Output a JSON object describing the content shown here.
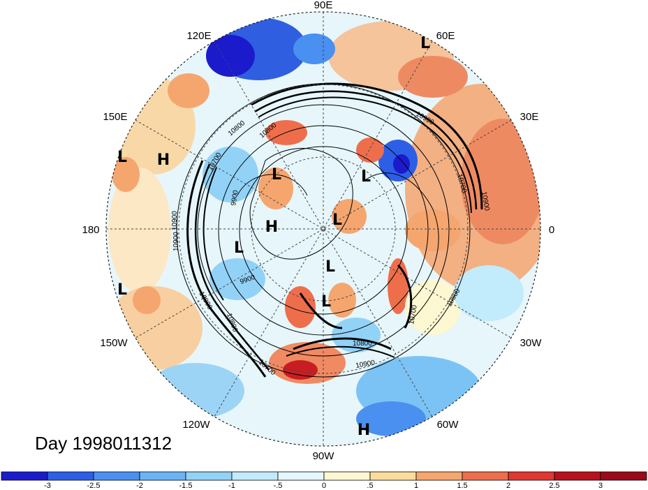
{
  "title": "Day 1998011312",
  "map": {
    "projection": "north-polar-stereographic",
    "longitude_labels": [
      "90E",
      "60E",
      "30E",
      "0",
      "30W",
      "60W",
      "90W",
      "120W",
      "150W",
      "180",
      "150E",
      "120E"
    ],
    "extrema": [
      {
        "type": "L"
      },
      {
        "type": "L"
      },
      {
        "type": "H"
      },
      {
        "type": "L"
      },
      {
        "type": "L"
      },
      {
        "type": "H"
      },
      {
        "type": "L"
      },
      {
        "type": "L"
      },
      {
        "type": "L"
      },
      {
        "type": "L"
      },
      {
        "type": "L"
      },
      {
        "type": "H"
      }
    ],
    "contour_labels": [
      "10800",
      "10900",
      "10900",
      "10700",
      "10800",
      "10700",
      "9900",
      "9900",
      "10900",
      "10800",
      "10800",
      "10700",
      "10800",
      "10700",
      "10800",
      "10900",
      "10900"
    ]
  },
  "colorbar": {
    "ticks": [
      "-3",
      "-2.5",
      "-2",
      "-1.5",
      "-1",
      "-.5",
      "0",
      ".5",
      "1",
      "1.5",
      "2",
      "2.5",
      "3"
    ],
    "colors": [
      "#1b1bcc",
      "#2d5fe6",
      "#4a90f0",
      "#6ab4f5",
      "#92d2f7",
      "#c2ebfb",
      "#e4f7fc",
      "#fdf7d2",
      "#fbdc9c",
      "#f5a66f",
      "#ee6e4c",
      "#e03731",
      "#b8111d",
      "#9b0a1a"
    ]
  }
}
